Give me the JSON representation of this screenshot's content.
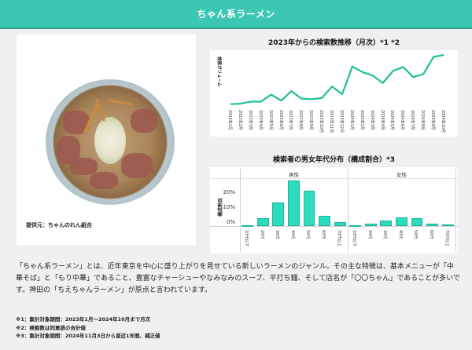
{
  "header": {
    "title": "ちゃん系ラーメン"
  },
  "photo": {
    "description": "ramen-bowl-with-chashu",
    "credit": "提供元：ちゃんのれん組合"
  },
  "line_chart": {
    "title": "2023年からの検索数推移（月次）*1 *2",
    "ylabel": "検索ボリューム",
    "color": "#1fbf95"
  },
  "bar_chart": {
    "title": "検索者の男女年代分布（構成割合）*3",
    "ylabel": "構成割合",
    "yticks": [
      "20%",
      "10%",
      "0%"
    ],
    "facets": [
      "男性",
      "女性"
    ],
    "color": "#2cdcbc"
  },
  "chart_data": [
    {
      "type": "line",
      "title": "2023年からの検索数推移（月次）*1 *2",
      "xlabel": "",
      "ylabel": "検索ボリューム",
      "categories": [
        "2023年1月",
        "2023年2月",
        "2023年3月",
        "2023年4月",
        "2023年5月",
        "2023年6月",
        "2023年7月",
        "2023年8月",
        "2023年9月",
        "2023年10月",
        "2023年11月",
        "2023年12月",
        "2024年1月",
        "2024年2月",
        "2024年3月",
        "2024年4月",
        "2024年5月",
        "2024年6月",
        "2024年7月",
        "2024年8月",
        "2024年9月",
        "2024年10月"
      ],
      "values": [
        2,
        3,
        7,
        7,
        21,
        9,
        28,
        13,
        12,
        14,
        37,
        22,
        77,
        66,
        59,
        44,
        68,
        76,
        56,
        62,
        96,
        100
      ],
      "ylim": [
        0,
        100
      ],
      "grid": false,
      "legend": null
    },
    {
      "type": "bar",
      "title": "検索者の男女年代分布（構成割合）*3",
      "xlabel": "",
      "ylabel": "構成割合",
      "categories": [
        "10代以下",
        "20代",
        "30代",
        "40代",
        "50代",
        "60代",
        "70代以上"
      ],
      "series": [
        {
          "name": "男性",
          "values": [
            0.5,
            5,
            14.5,
            28.5,
            22,
            6.5,
            2.5
          ]
        },
        {
          "name": "女性",
          "values": [
            0.2,
            1.5,
            3.5,
            5.5,
            5,
            1.5,
            1.2
          ]
        }
      ],
      "yticks": [
        "0%",
        "10%",
        "20%"
      ],
      "ylim": [
        0,
        30
      ],
      "grid": true,
      "legend": "facet-labels-top"
    }
  ],
  "description": "「ちゃん系ラーメン」とは、近年東京を中心に盛り上がりを見せている新しいラーメンのジャンル。その主な特徴は、基本メニューが「中華そば」と「もり中華」であること、豊富なチャーシューやなみなみのスープ、平打ち麺、そして店名が「〇〇ちゃん」であることが多いです。神田の「ちえちゃんラーメン」が原点と言われています。",
  "notes": [
    "※1：集計対象期間：2023年1月～2024年10月まで月次",
    "※2：検索数は同意語の合計値",
    "※3：集計対象期間：2024年11月3日から直近1年間、補正値"
  ]
}
